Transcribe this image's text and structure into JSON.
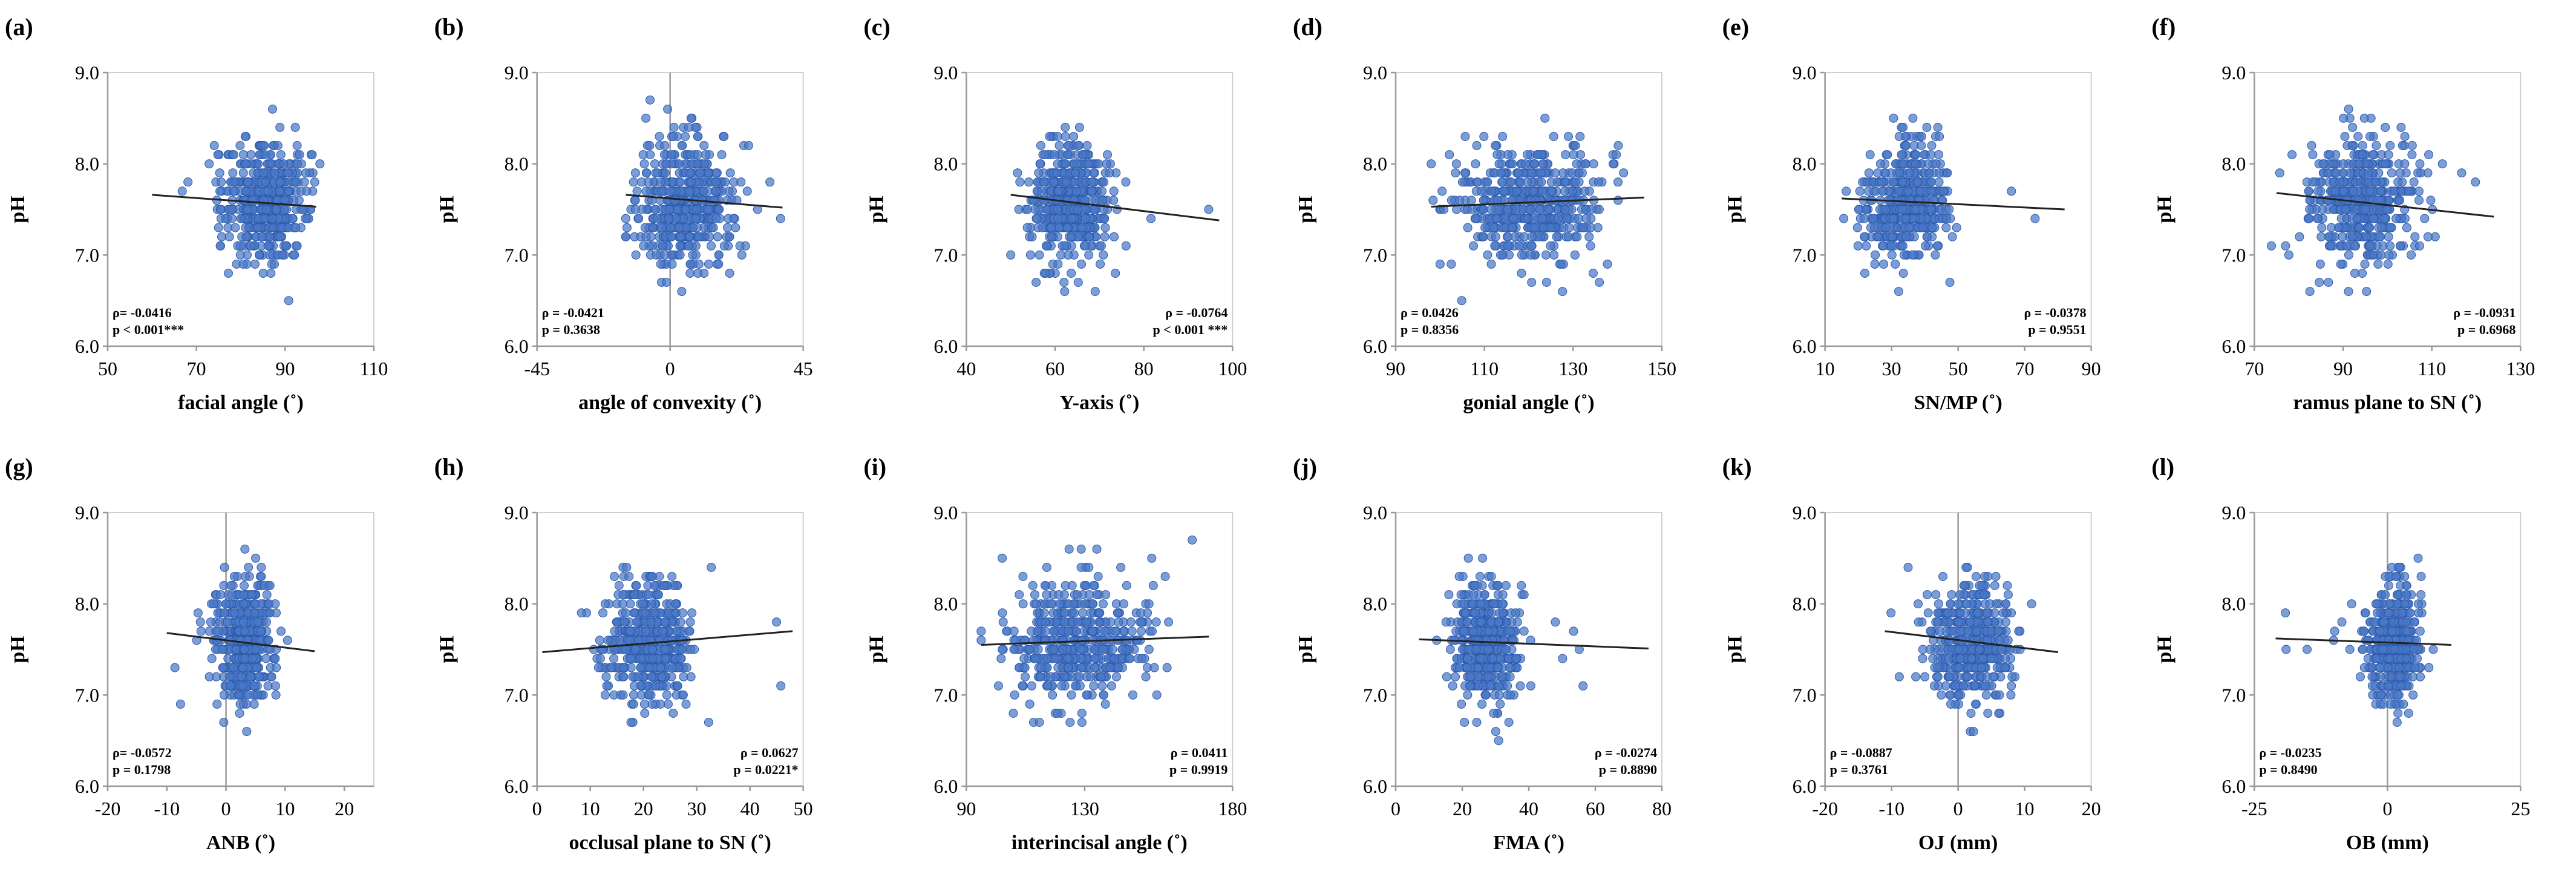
{
  "colors": {
    "point": "#4a78c9",
    "point_stroke": "#2e59a8",
    "trend": "#222222",
    "axis": "#9a9a9a"
  },
  "chart_data": [
    {
      "id": "a",
      "letter": "(a)",
      "type": "scatter",
      "ylabel": "pH",
      "xlabel": "facial angle (˚)",
      "xlim": [
        50,
        110
      ],
      "xticks": [
        50,
        70,
        90,
        110
      ],
      "ylim": [
        6.0,
        9.0
      ],
      "yticks": [
        "6.0",
        "7.0",
        "8.0",
        "9.0"
      ],
      "x_center": 86,
      "x_spread": 4.5,
      "x_min": 58,
      "x_max": 98,
      "n_points": 480,
      "trend": {
        "x": [
          60,
          97
        ],
        "y": [
          7.66,
          7.53
        ]
      },
      "vline": null,
      "stats": [
        "ρ= -0.0416",
        "p < 0.001***"
      ],
      "stats_position": "bottom-left"
    },
    {
      "id": "b",
      "letter": "(b)",
      "type": "scatter",
      "ylabel": "pH",
      "xlabel": "angle of convexity (˚)",
      "xlim": [
        -45,
        45
      ],
      "xticks": [
        -45,
        0,
        45
      ],
      "ylim": [
        6.0,
        9.0
      ],
      "yticks": [
        "6.0",
        "7.0",
        "8.0",
        "9.0"
      ],
      "x_center": 5,
      "x_spread": 8,
      "x_min": -15,
      "x_max": 38,
      "n_points": 480,
      "trend": {
        "x": [
          -15,
          38
        ],
        "y": [
          7.66,
          7.52
        ]
      },
      "vline": 0,
      "stats": [
        "ρ = -0.0421",
        "p = 0.3638"
      ],
      "stats_position": "bottom-left"
    },
    {
      "id": "c",
      "letter": "(c)",
      "type": "scatter",
      "ylabel": "pH",
      "xlabel": "Y-axis (˚)",
      "xlim": [
        40,
        100
      ],
      "xticks": [
        40,
        60,
        80,
        100
      ],
      "ylim": [
        6.0,
        9.0
      ],
      "yticks": [
        "6.0",
        "7.0",
        "8.0",
        "9.0"
      ],
      "x_center": 63,
      "x_spread": 4.5,
      "x_min": 50,
      "x_max": 97,
      "n_points": 480,
      "trend": {
        "x": [
          50,
          97
        ],
        "y": [
          7.66,
          7.38
        ]
      },
      "vline": null,
      "stats": [
        "ρ = -0.0764",
        "p < 0.001 ***"
      ],
      "stats_position": "bottom-right"
    },
    {
      "id": "d",
      "letter": "(d)",
      "type": "scatter",
      "ylabel": "pH",
      "xlabel": "gonial angle (˚)",
      "xlim": [
        90,
        150
      ],
      "xticks": [
        90,
        110,
        130,
        150
      ],
      "ylim": [
        6.0,
        9.0
      ],
      "yticks": [
        "6.0",
        "7.0",
        "8.0",
        "9.0"
      ],
      "x_center": 121,
      "x_spread": 8,
      "x_min": 98,
      "x_max": 146,
      "n_points": 480,
      "trend": {
        "x": [
          98,
          146
        ],
        "y": [
          7.53,
          7.63
        ]
      },
      "vline": null,
      "stats": [
        "ρ = 0.0426",
        "p = 0.8356"
      ],
      "stats_position": "bottom-left"
    },
    {
      "id": "e",
      "letter": "(e)",
      "type": "scatter",
      "ylabel": "pH",
      "xlabel": "SN/MP (˚)",
      "xlim": [
        10,
        90
      ],
      "xticks": [
        10,
        30,
        50,
        70,
        90
      ],
      "ylim": [
        6.0,
        9.0
      ],
      "yticks": [
        "6.0",
        "7.0",
        "8.0",
        "9.0"
      ],
      "x_center": 35,
      "x_spread": 6.5,
      "x_min": 15,
      "x_max": 82,
      "n_points": 480,
      "trend": {
        "x": [
          15,
          82
        ],
        "y": [
          7.62,
          7.5
        ]
      },
      "vline": null,
      "stats": [
        "ρ = -0.0378",
        "p = 0.9551"
      ],
      "stats_position": "bottom-right"
    },
    {
      "id": "f",
      "letter": "(f)",
      "type": "scatter",
      "ylabel": "pH",
      "xlabel": "ramus plane to SN (˚)",
      "xlim": [
        70,
        130
      ],
      "xticks": [
        70,
        90,
        110,
        130
      ],
      "ylim": [
        6.0,
        9.0
      ],
      "yticks": [
        "6.0",
        "7.0",
        "8.0",
        "9.0"
      ],
      "x_center": 94,
      "x_spread": 6,
      "x_min": 73,
      "x_max": 124,
      "n_points": 480,
      "trend": {
        "x": [
          75,
          124
        ],
        "y": [
          7.68,
          7.42
        ]
      },
      "vline": null,
      "stats": [
        "ρ = -0.0931",
        "p = 0.6968"
      ],
      "stats_position": "bottom-right"
    },
    {
      "id": "g",
      "letter": "(g)",
      "type": "scatter",
      "ylabel": "pH",
      "xlabel": "ANB (˚)",
      "xlim": [
        -20,
        25
      ],
      "xticks": [
        -20,
        -10,
        0,
        10,
        20
      ],
      "ylim": [
        6.0,
        9.0
      ],
      "yticks": [
        "6.0",
        "7.0",
        "8.0",
        "9.0"
      ],
      "x_center": 3,
      "x_spread": 2.5,
      "x_min": -10,
      "x_max": 15,
      "n_points": 480,
      "trend": {
        "x": [
          -10,
          15
        ],
        "y": [
          7.68,
          7.48
        ]
      },
      "vline": 0,
      "stats": [
        "ρ= -0.0572",
        "p = 0.1798"
      ],
      "stats_position": "bottom-left"
    },
    {
      "id": "h",
      "letter": "(h)",
      "type": "scatter",
      "ylabel": "pH",
      "xlabel": "occlusal plane to SN (˚)",
      "xlim": [
        0,
        50
      ],
      "xticks": [
        0,
        10,
        20,
        30,
        40,
        50
      ],
      "ylim": [
        6.0,
        9.0
      ],
      "yticks": [
        "6.0",
        "7.0",
        "8.0",
        "9.0"
      ],
      "x_center": 21,
      "x_spread": 4,
      "x_min": 1,
      "x_max": 48,
      "n_points": 480,
      "trend": {
        "x": [
          1,
          48
        ],
        "y": [
          7.47,
          7.7
        ]
      },
      "vline": null,
      "stats": [
        "ρ = 0.0627",
        "p = 0.0221*"
      ],
      "stats_position": "bottom-right"
    },
    {
      "id": "i",
      "letter": "(i)",
      "type": "scatter",
      "ylabel": "pH",
      "xlabel": "interincisal  angle (˚)",
      "xlim": [
        90,
        180
      ],
      "xticks": [
        90,
        130,
        180
      ],
      "ylim": [
        6.0,
        9.0
      ],
      "yticks": [
        "6.0",
        "7.0",
        "8.0",
        "9.0"
      ],
      "x_center": 128,
      "x_spread": 12,
      "x_min": 95,
      "x_max": 172,
      "n_points": 480,
      "trend": {
        "x": [
          95,
          172
        ],
        "y": [
          7.55,
          7.64
        ]
      },
      "vline": null,
      "stats": [
        "ρ = 0.0411",
        "p = 0.9919"
      ],
      "stats_position": "bottom-right"
    },
    {
      "id": "j",
      "letter": "(j)",
      "type": "scatter",
      "ylabel": "pH",
      "xlabel": "FMA (˚)",
      "xlim": [
        0,
        80
      ],
      "xticks": [
        0,
        20,
        40,
        60,
        80
      ],
      "ylim": [
        6.0,
        9.0
      ],
      "yticks": [
        "6.0",
        "7.0",
        "8.0",
        "9.0"
      ],
      "x_center": 27,
      "x_spread": 4.5,
      "x_min": 7,
      "x_max": 76,
      "n_points": 480,
      "trend": {
        "x": [
          7,
          76
        ],
        "y": [
          7.61,
          7.51
        ]
      },
      "vline": null,
      "stats": [
        "ρ = -0.0274",
        "p = 0.8890"
      ],
      "stats_position": "bottom-right"
    },
    {
      "id": "k",
      "letter": "(k)",
      "type": "scatter",
      "ylabel": "pH",
      "xlabel": "OJ (mm)",
      "xlim": [
        -20,
        20
      ],
      "xticks": [
        -20,
        -10,
        0,
        10,
        20
      ],
      "ylim": [
        6.0,
        9.0
      ],
      "yticks": [
        "6.0",
        "7.0",
        "8.0",
        "9.0"
      ],
      "x_center": 2,
      "x_spread": 3,
      "x_min": -11,
      "x_max": 17,
      "n_points": 480,
      "trend": {
        "x": [
          -11,
          15
        ],
        "y": [
          7.7,
          7.47
        ]
      },
      "vline": 0,
      "stats": [
        "ρ = -0.0887",
        "p = 0.3761"
      ],
      "stats_position": "bottom-left"
    },
    {
      "id": "l",
      "letter": "(l)",
      "type": "scatter",
      "ylabel": "pH",
      "xlabel": "OB (mm)",
      "xlim": [
        -25,
        25
      ],
      "xticks": [
        -25,
        0,
        25
      ],
      "ylim": [
        6.0,
        9.0
      ],
      "yticks": [
        "6.0",
        "7.0",
        "8.0",
        "9.0"
      ],
      "x_center": 1,
      "x_spread": 2.5,
      "x_min": -21,
      "x_max": 12,
      "n_points": 480,
      "trend": {
        "x": [
          -21,
          12
        ],
        "y": [
          7.62,
          7.55
        ]
      },
      "vline": 0,
      "stats": [
        "ρ = -0.0235",
        "p = 0.8490"
      ],
      "stats_position": "bottom-left"
    }
  ]
}
